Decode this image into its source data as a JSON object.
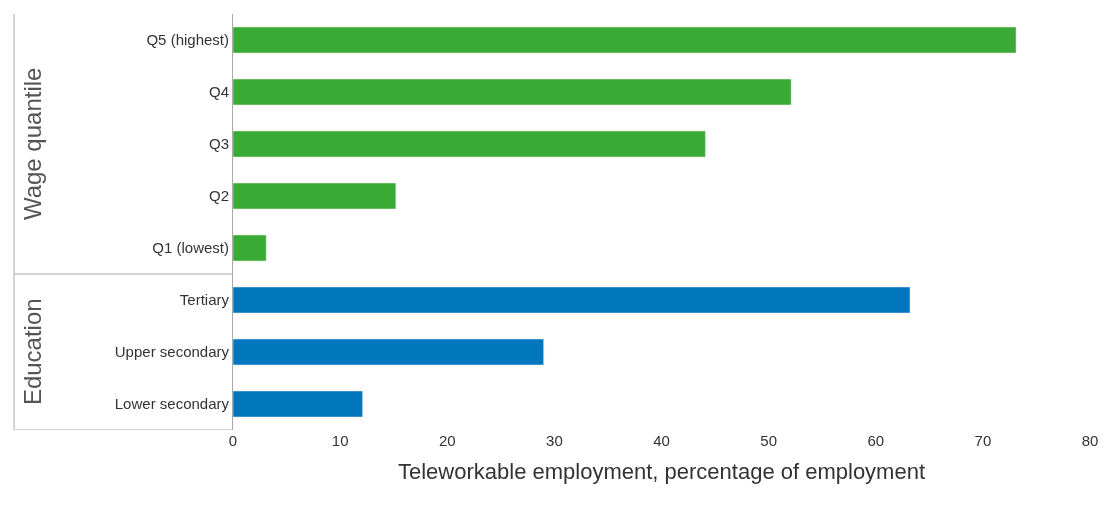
{
  "chart_data": {
    "type": "bar",
    "orientation": "horizontal",
    "xlabel": "Teleworkable employment, percentage of employment",
    "categories": [
      "Q5 (highest)",
      "Q4",
      "Q3",
      "Q2",
      "Q1 (lowest)",
      "Tertiary",
      "Upper secondary",
      "Lower secondary"
    ],
    "values": [
      73.1,
      52.1,
      44.1,
      15.2,
      3.1,
      63.2,
      29.0,
      12.1
    ],
    "colors": [
      "#3aaa35",
      "#3aaa35",
      "#3aaa35",
      "#3aaa35",
      "#3aaa35",
      "#0077bd",
      "#0077bd",
      "#0077bd"
    ],
    "annotations": [
      "Wage quantile",
      "Education"
    ],
    "xlim": [
      0,
      80
    ],
    "xticks": [
      0,
      10,
      20,
      30,
      40,
      50,
      60,
      70,
      80
    ]
  }
}
